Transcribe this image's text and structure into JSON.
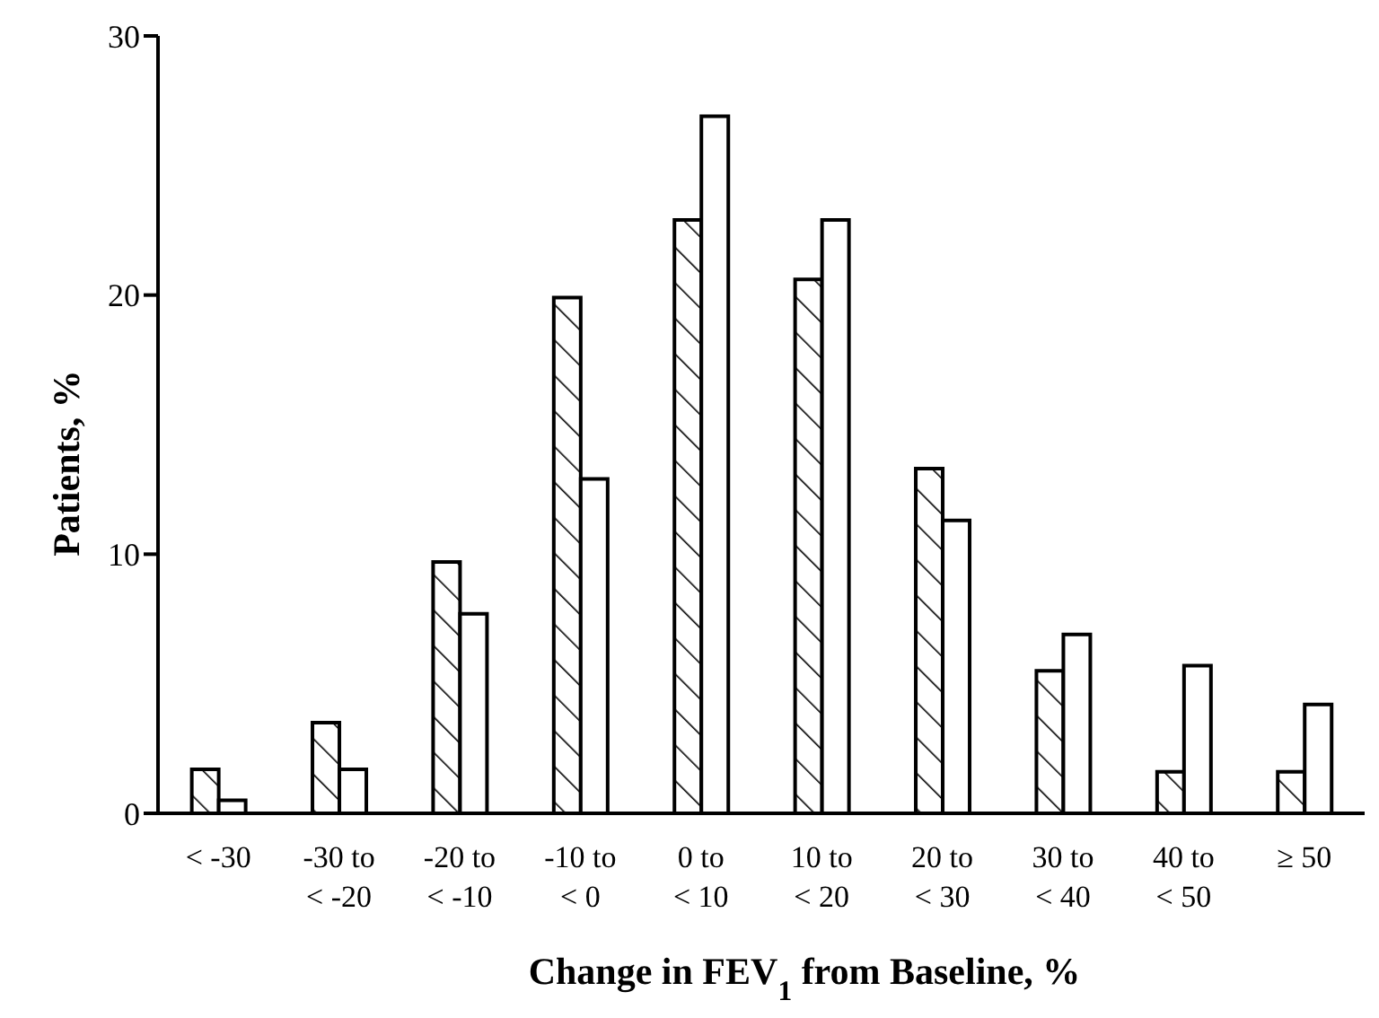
{
  "chart_data": {
    "type": "bar",
    "xlabel": "Change in FEV$_{1}$ from Baseline, %",
    "ylabel": "Patients, %",
    "categories": [
      "< -30",
      "-30 to\n< -20",
      "-20 to\n< -10",
      "-10 to\n< 0",
      "0 to\n< 10",
      "10 to\n< 20",
      "20 to\n< 30",
      "30 to\n< 40",
      "40 to\n< 50",
      "≥ 50"
    ],
    "series": [
      {
        "color": "#000000",
        "values": [
          1.7,
          3.5,
          9.7,
          19.9,
          22.9,
          20.6,
          13.3,
          5.5,
          1.6,
          1.6
        ]
      },
      {
        "color": "#ffffff",
        "values": [
          0.5,
          1.7,
          7.7,
          12.9,
          26.9,
          22.9,
          11.3,
          6.9,
          5.7,
          4.2
        ]
      }
    ],
    "ylim": [
      0,
      30
    ],
    "yticks": [
      0,
      10,
      20,
      30
    ],
    "grid": false,
    "legend": false
  }
}
